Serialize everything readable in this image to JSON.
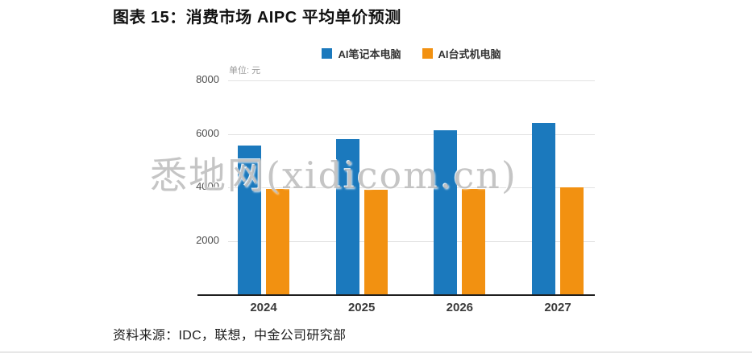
{
  "page": {
    "title": "图表 15：消费市场 AIPC 平均单价预测",
    "source": "资料来源：IDC，联想，中金公司研究部",
    "watermark": "悉地网(xidicom.cn)"
  },
  "chart_data": {
    "type": "bar",
    "title": "消费市场 AIPC 平均单价预测",
    "unit_label": "单位: 元",
    "categories": [
      "2024",
      "2025",
      "2026",
      "2027"
    ],
    "series": [
      {
        "name": "AI笔记本电脑",
        "color": "#1b79bd",
        "values": [
          5550,
          5800,
          6150,
          6400
        ]
      },
      {
        "name": "AI台式机电脑",
        "color": "#f29111",
        "values": [
          3950,
          3900,
          3950,
          4000
        ]
      }
    ],
    "ylim": [
      0,
      8000
    ],
    "yticks": [
      2000,
      4000,
      6000,
      8000
    ],
    "grid": "horizontal",
    "legend_position": "top",
    "xlabel": "",
    "ylabel": "元"
  }
}
